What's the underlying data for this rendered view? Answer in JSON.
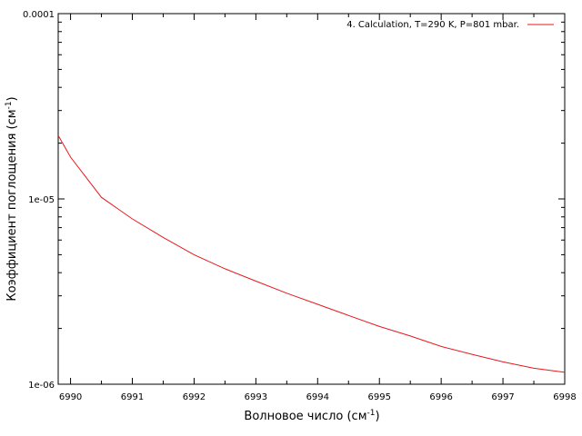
{
  "chart_data": {
    "type": "line",
    "xlabel": "Волновое число (см",
    "xlabel_sup": "-1",
    "xlabel_end": ")",
    "ylabel": "Коэффициент поглощения (см",
    "ylabel_sup": "-1",
    "ylabel_end": ")",
    "xlim": [
      6989.8,
      6998
    ],
    "ylim": [
      1e-06,
      0.0001
    ],
    "yscale": "log",
    "x_ticks": [
      6990,
      6991,
      6992,
      6993,
      6994,
      6995,
      6996,
      6997,
      6998
    ],
    "x_tick_labels": [
      "6990",
      "6991",
      "6992",
      "6993",
      "6994",
      "6995",
      "6996",
      "6997",
      "6998"
    ],
    "y_ticks": [
      1e-06,
      1e-05,
      0.0001
    ],
    "y_tick_labels": [
      "1e-06",
      "1e-05",
      "0.0001"
    ],
    "grid": false,
    "legend_position": "top-right",
    "series": [
      {
        "name": "4. Calculation, T=290 K, P=801 mbar.",
        "color": "#e8191e",
        "x": [
          6989.8,
          6990.0,
          6990.5,
          6991.0,
          6991.5,
          6992.0,
          6992.5,
          6993.0,
          6993.5,
          6994.0,
          6994.5,
          6995.0,
          6995.5,
          6996.0,
          6996.5,
          6997.0,
          6997.5,
          6998.0
        ],
        "y": [
          2.2e-05,
          1.68e-05,
          1.02e-05,
          7.8e-06,
          6.2e-06,
          5e-06,
          4.2e-06,
          3.6e-06,
          3.1e-06,
          2.7e-06,
          2.35e-06,
          2.05e-06,
          1.82e-06,
          1.6e-06,
          1.45e-06,
          1.32e-06,
          1.22e-06,
          1.16e-06
        ]
      }
    ]
  }
}
